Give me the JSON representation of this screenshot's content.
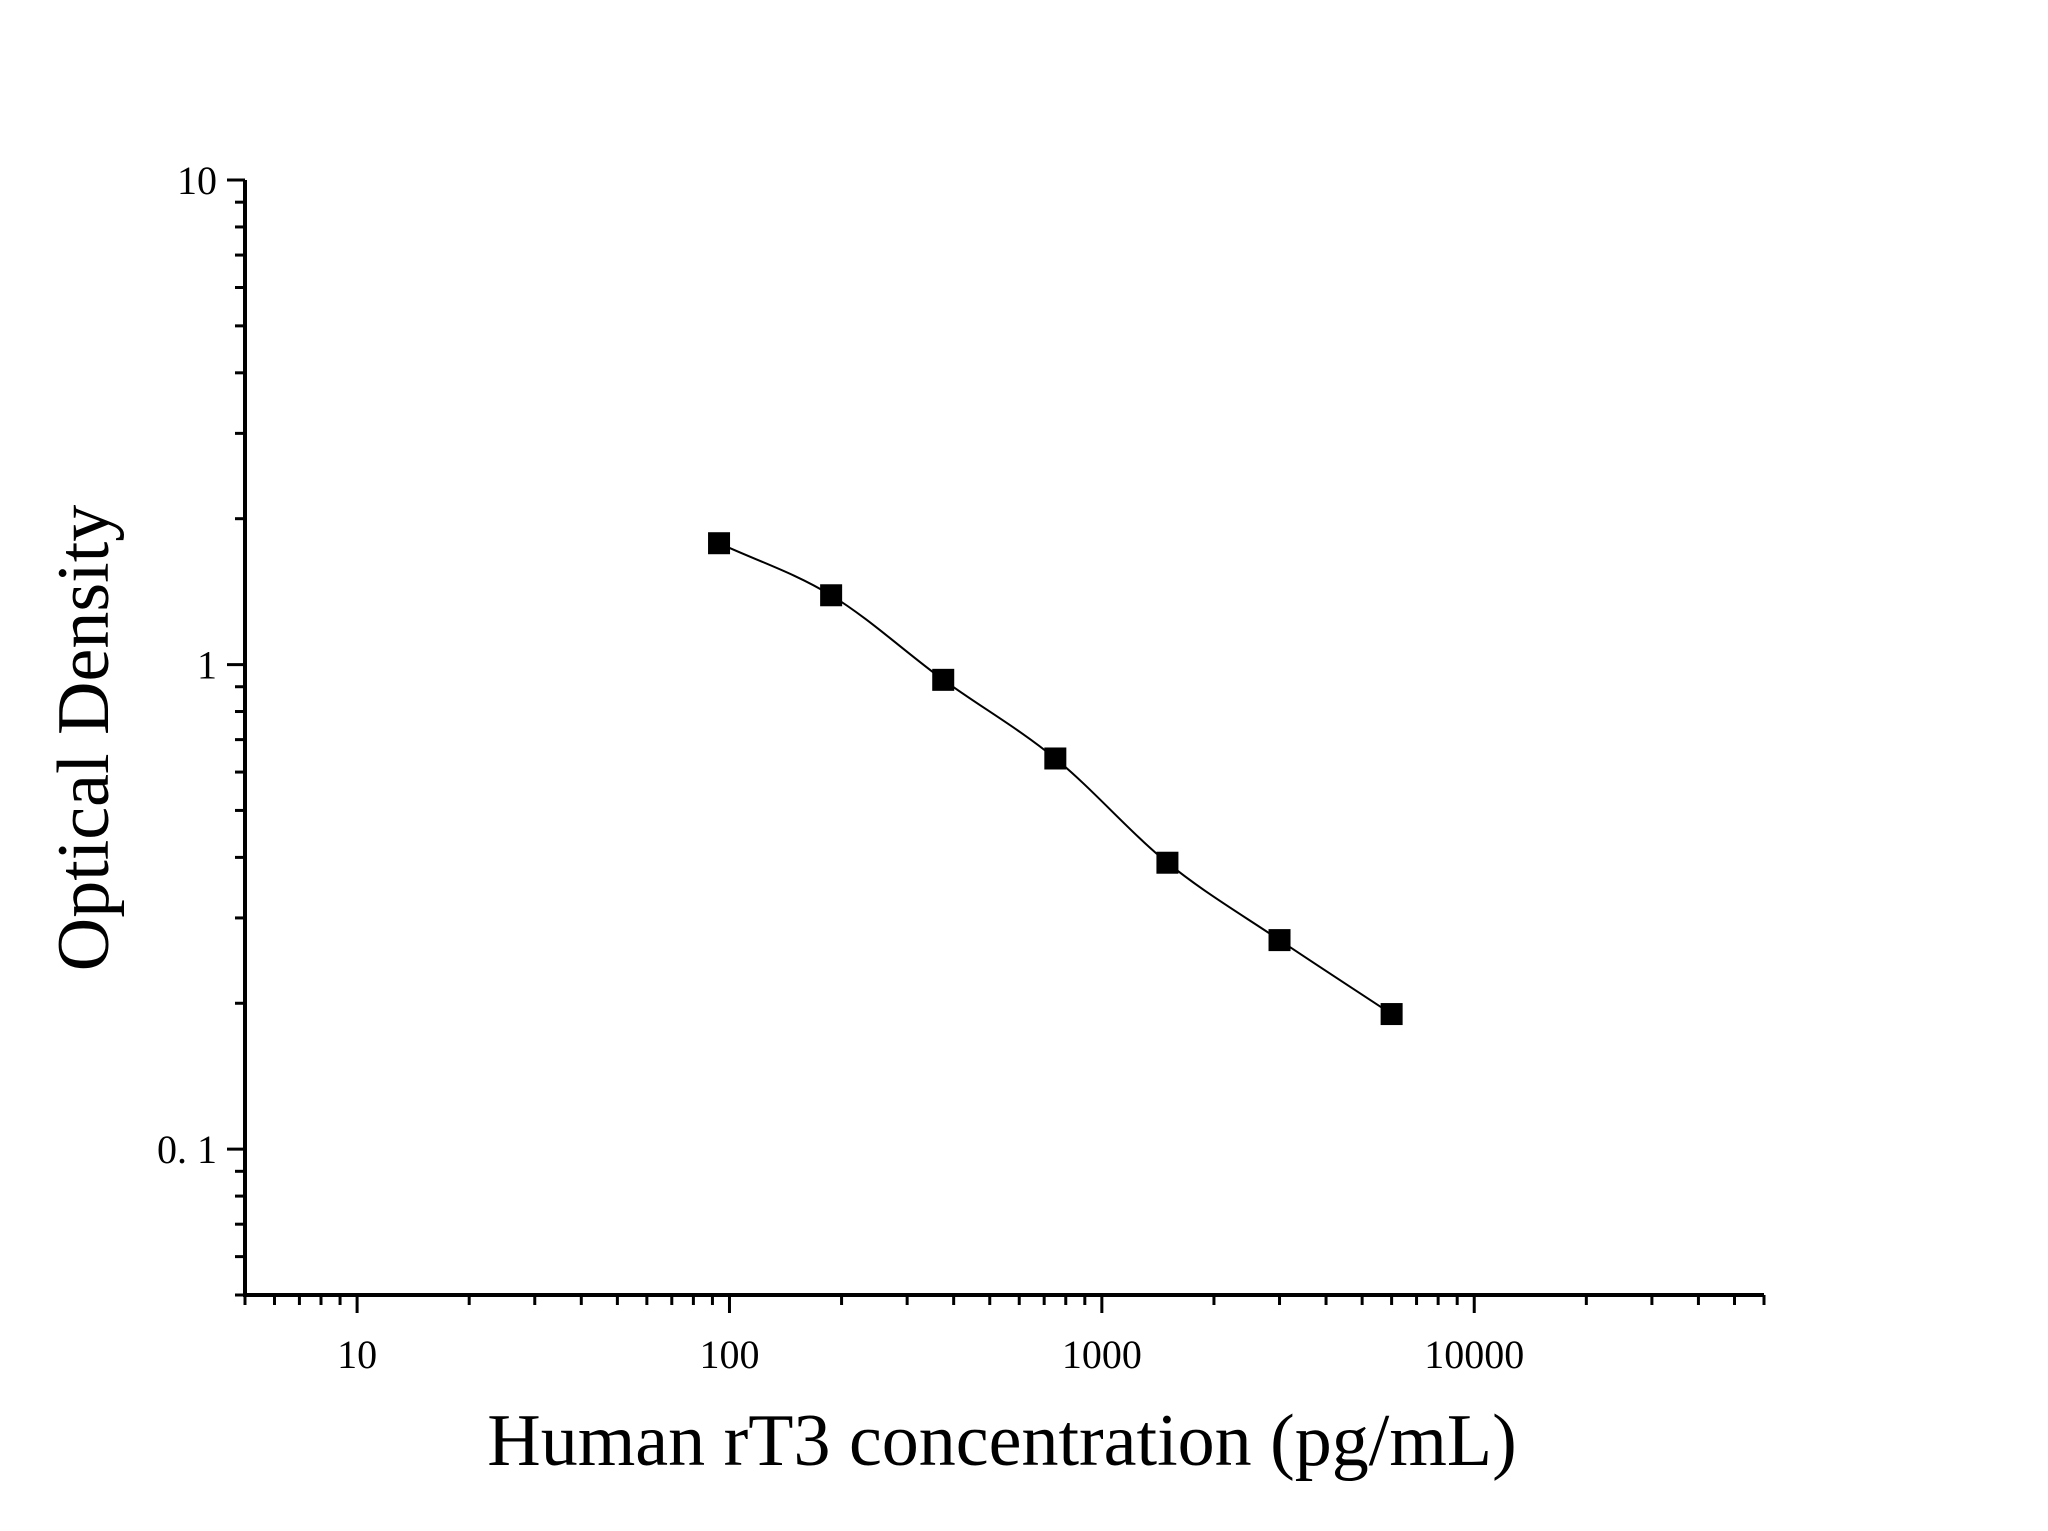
{
  "chart_data": {
    "type": "scatter",
    "title": "",
    "xlabel": "Human rT3 concentration (pg/mL)",
    "ylabel": "Optical Density",
    "xscale": "log",
    "yscale": "log",
    "xlim": [
      5,
      60000
    ],
    "ylim": [
      0.05,
      10
    ],
    "xticks": [
      {
        "value": 10,
        "label": "10"
      },
      {
        "value": 100,
        "label": "100"
      },
      {
        "value": 1000,
        "label": "1000"
      },
      {
        "value": 10000,
        "label": "10000"
      }
    ],
    "yticks": [
      {
        "value": 0.1,
        "label": "0. 1"
      },
      {
        "value": 1,
        "label": "1"
      },
      {
        "value": 10,
        "label": "10"
      }
    ],
    "grid": false,
    "legend": "none",
    "fit_curve": true,
    "marker": "square",
    "colors": {
      "points": "#000000",
      "curve": "#000000",
      "axes": "#000000"
    },
    "series": [
      {
        "x": [
          93.75,
          187.5,
          375,
          750,
          1500,
          3000,
          6000
        ],
        "y": [
          1.78,
          1.39,
          0.93,
          0.64,
          0.39,
          0.27,
          0.19
        ]
      }
    ]
  }
}
